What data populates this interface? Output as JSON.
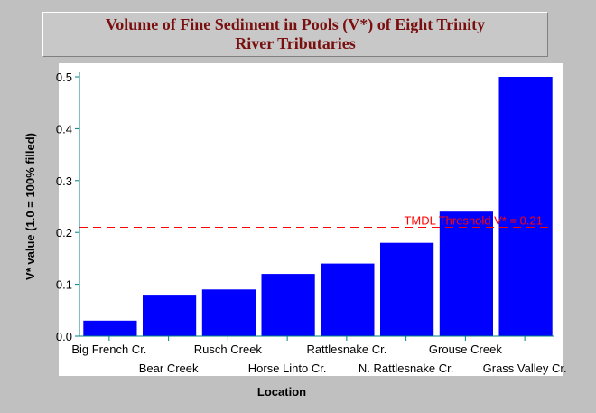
{
  "chart_data": {
    "type": "bar",
    "title_lines": [
      "Volume of Fine Sediment in Pools (V*) of Eight Trinity",
      "River Tributaries"
    ],
    "xlabel": "Location",
    "ylabel": "V* value (1.0 = 100% filled)",
    "categories": [
      "Big French Cr.",
      "Bear Creek",
      "Rusch Creek",
      "Horse Linto Cr.",
      "Rattlesnake Cr.",
      "N. Rattlesnake Cr.",
      "Grouse Creek",
      "Grass Valley Cr."
    ],
    "values": [
      0.03,
      0.08,
      0.09,
      0.12,
      0.14,
      0.18,
      0.24,
      0.5
    ],
    "ylim": [
      0,
      0.5
    ],
    "yticks": [
      "0.0",
      "0.1",
      "0.2",
      "0.3",
      "0.4",
      "0.5"
    ],
    "threshold": {
      "value": 0.21,
      "label": "TMDL Threshold V* = 0.21",
      "color": "#ff0000"
    },
    "bar_color": "#0000ff",
    "axis_color": "#008080",
    "grid": false
  }
}
